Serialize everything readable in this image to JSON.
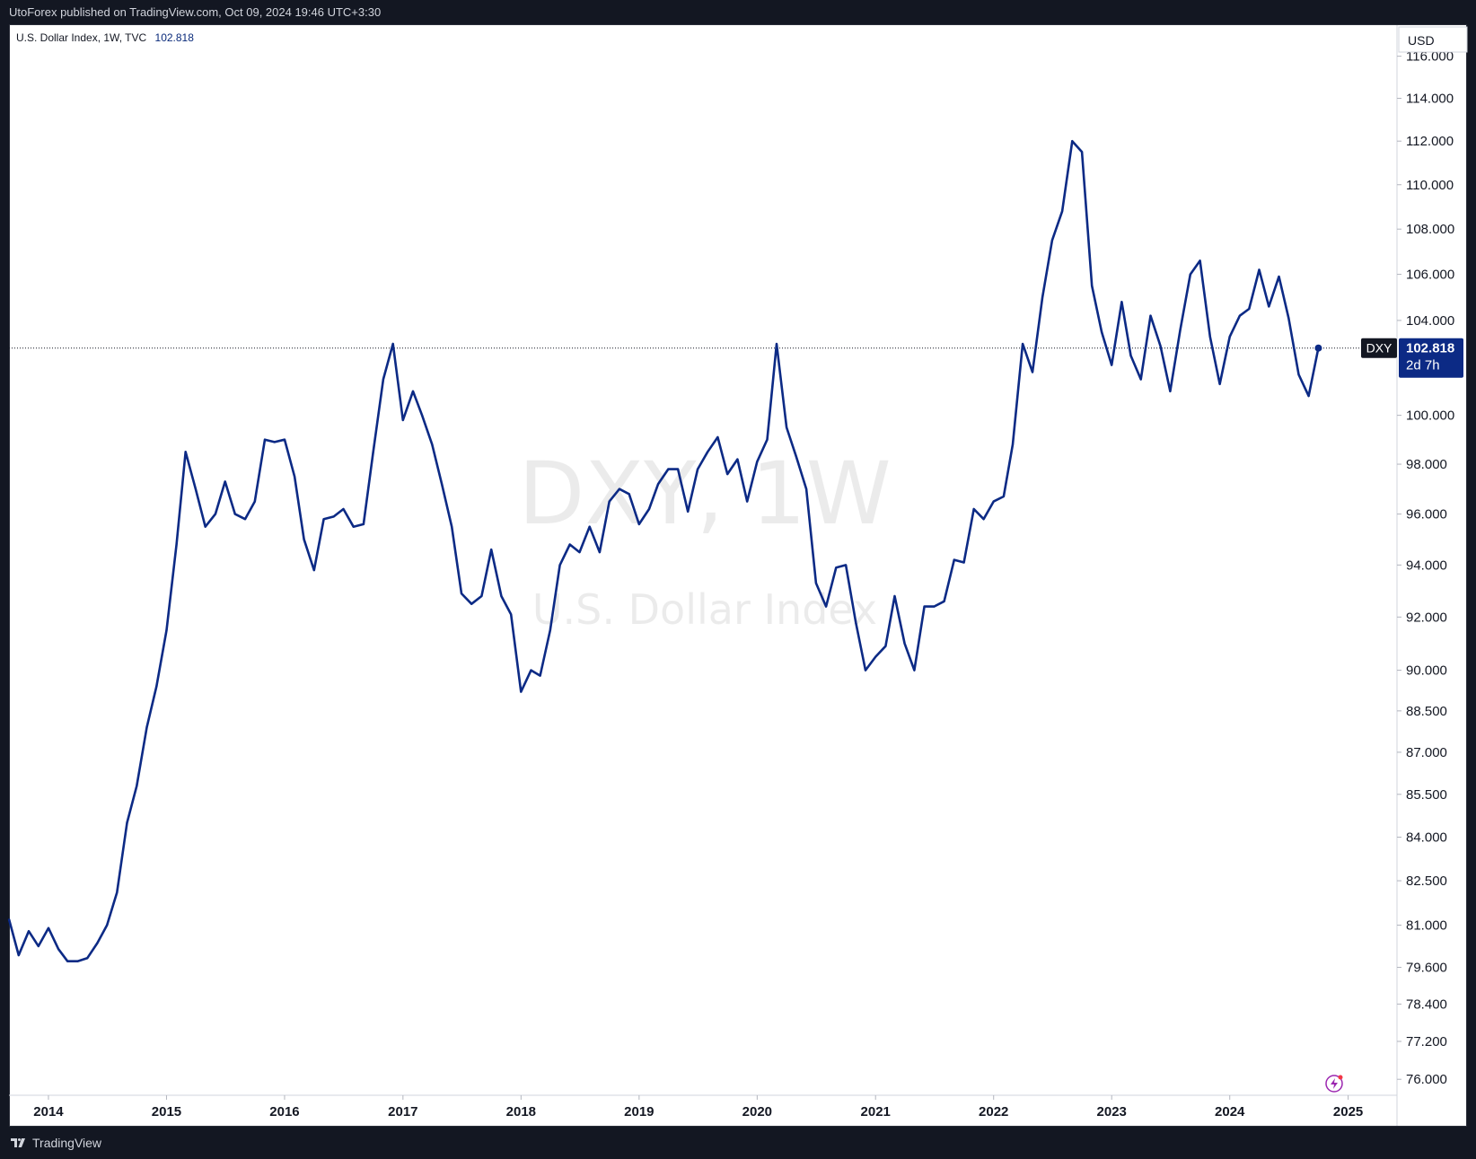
{
  "header": {
    "published_text": "UtoForex published on TradingView.com, Oct 09, 2024 19:46 UTC+3:30"
  },
  "footer": {
    "brand_label": "TradingView"
  },
  "legend": {
    "symbol_text": "U.S. Dollar Index, 1W, TVC",
    "last_value": "102.818"
  },
  "watermark": {
    "symbol": "DXY, 1W",
    "name": "U.S. Dollar Index"
  },
  "price_scale": {
    "currency": "USD",
    "ticks": [
      "116.000",
      "114.000",
      "112.000",
      "110.000",
      "108.000",
      "106.000",
      "104.000",
      "100.000",
      "98.000",
      "96.000",
      "94.000",
      "92.000",
      "90.000",
      "88.500",
      "87.000",
      "85.500",
      "84.000",
      "82.500",
      "81.000",
      "79.600",
      "78.400",
      "77.200",
      "76.000"
    ],
    "current_symbol": "DXY",
    "current_value": "102.818",
    "countdown": "2d 7h"
  },
  "time_scale": {
    "ticks": [
      "2014",
      "2015",
      "2016",
      "2017",
      "2018",
      "2019",
      "2020",
      "2021",
      "2022",
      "2023",
      "2024",
      "2025"
    ]
  },
  "colors": {
    "line": "#0c2a85",
    "badge_bg": "#0c2a85",
    "dark_badge": "#131722"
  },
  "icons": {
    "footer_logo": "tradingview-logo-icon",
    "snapshot": "lightning-icon"
  },
  "chart_data": {
    "type": "line",
    "title": "U.S. Dollar Index, 1W, TVC",
    "scale": "log",
    "ylim": [
      75.5,
      117.5
    ],
    "x_range": [
      "2013-09-01",
      "2025-06-01"
    ],
    "series": [
      {
        "name": "DXY",
        "values": [
          [
            "2013-09-01",
            81.2
          ],
          [
            "2013-10-01",
            80.0
          ],
          [
            "2013-11-01",
            80.8
          ],
          [
            "2013-12-01",
            80.3
          ],
          [
            "2014-01-01",
            80.9
          ],
          [
            "2014-02-01",
            80.2
          ],
          [
            "2014-03-01",
            79.8
          ],
          [
            "2014-04-01",
            79.8
          ],
          [
            "2014-05-01",
            79.9
          ],
          [
            "2014-06-01",
            80.4
          ],
          [
            "2014-07-01",
            81.0
          ],
          [
            "2014-08-01",
            82.1
          ],
          [
            "2014-09-01",
            84.5
          ],
          [
            "2014-10-01",
            85.8
          ],
          [
            "2014-11-01",
            87.9
          ],
          [
            "2014-12-01",
            89.4
          ],
          [
            "2015-01-01",
            91.5
          ],
          [
            "2015-02-01",
            94.8
          ],
          [
            "2015-03-01",
            98.5
          ],
          [
            "2015-04-01",
            97.0
          ],
          [
            "2015-05-01",
            95.5
          ],
          [
            "2015-06-01",
            96.0
          ],
          [
            "2015-07-01",
            97.3
          ],
          [
            "2015-08-01",
            96.0
          ],
          [
            "2015-09-01",
            95.8
          ],
          [
            "2015-10-01",
            96.5
          ],
          [
            "2015-11-01",
            99.0
          ],
          [
            "2015-12-01",
            98.9
          ],
          [
            "2016-01-01",
            99.0
          ],
          [
            "2016-02-01",
            97.5
          ],
          [
            "2016-03-01",
            95.0
          ],
          [
            "2016-04-01",
            93.8
          ],
          [
            "2016-05-01",
            95.8
          ],
          [
            "2016-06-01",
            95.9
          ],
          [
            "2016-07-01",
            96.2
          ],
          [
            "2016-08-01",
            95.5
          ],
          [
            "2016-09-01",
            95.6
          ],
          [
            "2016-10-01",
            98.5
          ],
          [
            "2016-11-01",
            101.5
          ],
          [
            "2016-12-01",
            103.0
          ],
          [
            "2017-01-01",
            99.8
          ],
          [
            "2017-02-01",
            101.0
          ],
          [
            "2017-03-01",
            100.0
          ],
          [
            "2017-04-01",
            98.8
          ],
          [
            "2017-05-01",
            97.2
          ],
          [
            "2017-06-01",
            95.5
          ],
          [
            "2017-07-01",
            92.9
          ],
          [
            "2017-08-01",
            92.5
          ],
          [
            "2017-09-01",
            92.8
          ],
          [
            "2017-10-01",
            94.6
          ],
          [
            "2017-11-01",
            92.8
          ],
          [
            "2017-12-01",
            92.1
          ],
          [
            "2018-01-01",
            89.2
          ],
          [
            "2018-02-01",
            90.0
          ],
          [
            "2018-03-01",
            89.8
          ],
          [
            "2018-04-01",
            91.5
          ],
          [
            "2018-05-01",
            94.0
          ],
          [
            "2018-06-01",
            94.8
          ],
          [
            "2018-07-01",
            94.5
          ],
          [
            "2018-08-01",
            95.5
          ],
          [
            "2018-09-01",
            94.5
          ],
          [
            "2018-10-01",
            96.5
          ],
          [
            "2018-11-01",
            97.0
          ],
          [
            "2018-12-01",
            96.8
          ],
          [
            "2019-01-01",
            95.6
          ],
          [
            "2019-02-01",
            96.2
          ],
          [
            "2019-03-01",
            97.2
          ],
          [
            "2019-04-01",
            97.8
          ],
          [
            "2019-05-01",
            97.8
          ],
          [
            "2019-06-01",
            96.1
          ],
          [
            "2019-07-01",
            97.8
          ],
          [
            "2019-08-01",
            98.5
          ],
          [
            "2019-09-01",
            99.1
          ],
          [
            "2019-10-01",
            97.6
          ],
          [
            "2019-11-01",
            98.2
          ],
          [
            "2019-12-01",
            96.5
          ],
          [
            "2020-01-01",
            98.1
          ],
          [
            "2020-02-01",
            99.0
          ],
          [
            "2020-03-01",
            103.0
          ],
          [
            "2020-04-01",
            99.5
          ],
          [
            "2020-05-01",
            98.3
          ],
          [
            "2020-06-01",
            97.0
          ],
          [
            "2020-07-01",
            93.3
          ],
          [
            "2020-08-01",
            92.4
          ],
          [
            "2020-09-01",
            93.9
          ],
          [
            "2020-10-01",
            94.0
          ],
          [
            "2020-11-01",
            91.8
          ],
          [
            "2020-12-01",
            90.0
          ],
          [
            "2021-01-01",
            90.5
          ],
          [
            "2021-02-01",
            90.9
          ],
          [
            "2021-03-01",
            92.8
          ],
          [
            "2021-04-01",
            91.0
          ],
          [
            "2021-05-01",
            90.0
          ],
          [
            "2021-06-01",
            92.4
          ],
          [
            "2021-07-01",
            92.4
          ],
          [
            "2021-08-01",
            92.6
          ],
          [
            "2021-09-01",
            94.2
          ],
          [
            "2021-10-01",
            94.1
          ],
          [
            "2021-11-01",
            96.2
          ],
          [
            "2021-12-01",
            95.8
          ],
          [
            "2022-01-01",
            96.5
          ],
          [
            "2022-02-01",
            96.7
          ],
          [
            "2022-03-01",
            98.8
          ],
          [
            "2022-04-01",
            103.0
          ],
          [
            "2022-05-01",
            101.8
          ],
          [
            "2022-06-01",
            105.0
          ],
          [
            "2022-07-01",
            107.5
          ],
          [
            "2022-08-01",
            108.8
          ],
          [
            "2022-09-01",
            112.0
          ],
          [
            "2022-10-01",
            111.5
          ],
          [
            "2022-11-01",
            105.5
          ],
          [
            "2022-12-01",
            103.5
          ],
          [
            "2023-01-01",
            102.1
          ],
          [
            "2023-02-01",
            104.8
          ],
          [
            "2023-03-01",
            102.5
          ],
          [
            "2023-04-01",
            101.5
          ],
          [
            "2023-05-01",
            104.2
          ],
          [
            "2023-06-01",
            102.9
          ],
          [
            "2023-07-01",
            101.0
          ],
          [
            "2023-08-01",
            103.6
          ],
          [
            "2023-09-01",
            106.0
          ],
          [
            "2023-10-01",
            106.6
          ],
          [
            "2023-11-01",
            103.3
          ],
          [
            "2023-12-01",
            101.3
          ],
          [
            "2024-01-01",
            103.3
          ],
          [
            "2024-02-01",
            104.2
          ],
          [
            "2024-03-01",
            104.5
          ],
          [
            "2024-04-01",
            106.2
          ],
          [
            "2024-05-01",
            104.6
          ],
          [
            "2024-06-01",
            105.9
          ],
          [
            "2024-07-01",
            104.1
          ],
          [
            "2024-08-01",
            101.7
          ],
          [
            "2024-09-01",
            100.8
          ],
          [
            "2024-10-01",
            102.818
          ]
        ]
      }
    ]
  }
}
